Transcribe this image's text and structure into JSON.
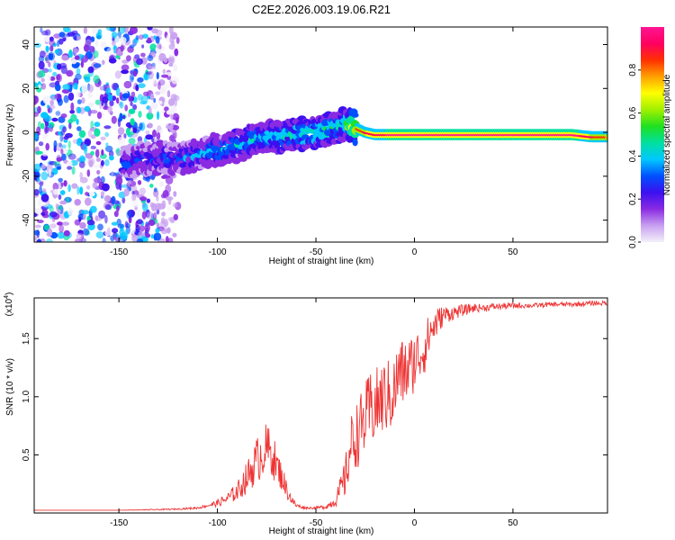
{
  "title": "C2E2.2026.003.19.06.R21",
  "chart_data": [
    {
      "type": "heatmap",
      "name": "spectrogram",
      "xlabel": "Height of straight line (km)",
      "ylabel": "Frequency (Hz)",
      "xlim": [
        -193,
        98
      ],
      "ylim": [
        -50,
        48
      ],
      "xticks": [
        -150,
        -100,
        -50,
        0,
        50
      ],
      "xtick_labels": [
        "-150",
        "-100",
        "-50",
        "0",
        "50"
      ],
      "yticks": [
        -40,
        -20,
        0,
        20,
        40
      ],
      "ytick_labels": [
        "-40",
        "-20",
        "0",
        "20",
        "40"
      ],
      "colorbar": {
        "label": "Normalized spectral amplitude",
        "range": [
          0,
          1
        ],
        "ticks": [
          0.0,
          0.2,
          0.4,
          0.6,
          0.8
        ],
        "tick_labels": [
          "0.0",
          "0.2",
          "0.4",
          "0.6",
          "0.8"
        ],
        "colors": [
          "#f4f0fa",
          "#c8a0f0",
          "#8a2be2",
          "#3b10f0",
          "#0050ff",
          "#00c8ff",
          "#00e0a0",
          "#20e020",
          "#a0f000",
          "#ffff00",
          "#ffa000",
          "#ff3000",
          "#ff0060",
          "#ff1493"
        ]
      },
      "trace": {
        "x": [
          -145,
          -140,
          -130,
          -120,
          -110,
          -100,
          -90,
          -80,
          -70,
          -60,
          -50,
          -45,
          -40,
          -35,
          -30,
          -25,
          -20,
          -10,
          0,
          10,
          20,
          40,
          60,
          80,
          90,
          98
        ],
        "y": [
          -14,
          -12,
          -12,
          -12,
          -10,
          -8,
          -6,
          -3,
          -2,
          -1,
          0,
          1,
          2,
          4,
          2,
          0,
          -1,
          -1,
          -1,
          -1,
          -1,
          -1,
          -1,
          -1,
          -2,
          -2
        ],
        "amplitude": [
          0.3,
          0.3,
          0.3,
          0.32,
          0.35,
          0.4,
          0.42,
          0.45,
          0.45,
          0.47,
          0.5,
          0.55,
          0.5,
          0.5,
          0.8,
          0.9,
          0.95,
          0.97,
          1.0,
          1.0,
          1.0,
          1.0,
          1.0,
          1.0,
          0.9,
          0.8
        ]
      },
      "noise_region": [
        -193,
        -120
      ]
    },
    {
      "type": "line",
      "name": "snr",
      "xlabel": "Height of straight line (km)",
      "ylabel": "SNR (10 * v/v)",
      "multiplier": "(x10",
      "multiplier_exp": "4",
      "multiplier_close": ")",
      "color": "#ee3333",
      "xlim": [
        -193,
        98
      ],
      "ylim": [
        0,
        1.85
      ],
      "xticks": [
        -150,
        -100,
        -50,
        0,
        50
      ],
      "xtick_labels": [
        "-150",
        "-100",
        "-50",
        "0",
        "50"
      ],
      "yticks": [
        0.5,
        1.0,
        1.5
      ],
      "ytick_labels": [
        "0.5",
        "1.0",
        "1.5"
      ],
      "series": [
        {
          "name": "SNR",
          "x": [
            -193,
            -150,
            -130,
            -120,
            -110,
            -105,
            -100,
            -95,
            -90,
            -85,
            -80,
            -77,
            -75,
            -72,
            -70,
            -67,
            -65,
            -62,
            -60,
            -55,
            -50,
            -45,
            -40,
            -35,
            -32,
            -30,
            -28,
            -25,
            -22,
            -20,
            -18,
            -15,
            -12,
            -10,
            -8,
            -5,
            -2,
            0,
            2,
            5,
            8,
            10,
            12,
            15,
            20,
            25,
            30,
            35,
            40,
            50,
            60,
            70,
            80,
            90,
            95,
            98
          ],
          "y": [
            0.02,
            0.02,
            0.025,
            0.03,
            0.04,
            0.06,
            0.08,
            0.12,
            0.18,
            0.3,
            0.45,
            0.52,
            0.55,
            0.5,
            0.4,
            0.3,
            0.2,
            0.1,
            0.06,
            0.04,
            0.04,
            0.05,
            0.1,
            0.3,
            0.6,
            0.65,
            0.7,
            0.8,
            0.9,
            0.9,
            0.95,
            1.0,
            1.0,
            1.05,
            1.2,
            1.2,
            1.25,
            1.3,
            1.35,
            1.4,
            1.55,
            1.6,
            1.65,
            1.7,
            1.72,
            1.74,
            1.76,
            1.76,
            1.77,
            1.78,
            1.78,
            1.79,
            1.79,
            1.8,
            1.8,
            1.8
          ],
          "noise": [
            0,
            0,
            0.005,
            0.006,
            0.01,
            0.015,
            0.03,
            0.05,
            0.08,
            0.14,
            0.2,
            0.22,
            0.22,
            0.2,
            0.16,
            0.12,
            0.08,
            0.04,
            0.02,
            0.01,
            0.01,
            0.02,
            0.05,
            0.18,
            0.25,
            0.28,
            0.3,
            0.32,
            0.33,
            0.33,
            0.33,
            0.32,
            0.32,
            0.32,
            0.3,
            0.3,
            0.28,
            0.26,
            0.25,
            0.22,
            0.18,
            0.15,
            0.12,
            0.08,
            0.06,
            0.05,
            0.04,
            0.03,
            0.03,
            0.025,
            0.02,
            0.02,
            0.02,
            0.02,
            0.02,
            0.02
          ]
        }
      ]
    }
  ]
}
